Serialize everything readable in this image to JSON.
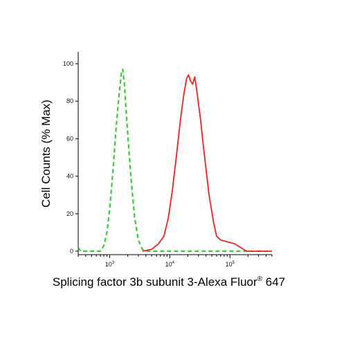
{
  "chart_data": {
    "type": "line",
    "xscale": "log",
    "xlim": [
      300,
      500000
    ],
    "ylim": [
      0,
      100
    ],
    "xticks": [
      {
        "value": 1000,
        "base": "10",
        "exp": "3"
      },
      {
        "value": 10000,
        "base": "10",
        "exp": "4"
      },
      {
        "value": 100000,
        "base": "10",
        "exp": "5"
      }
    ],
    "yticks": [
      {
        "value": 0,
        "label": "0"
      },
      {
        "value": 20,
        "label": "20"
      },
      {
        "value": 40,
        "label": "40"
      },
      {
        "value": 60,
        "label": "60"
      },
      {
        "value": 80,
        "label": "80"
      },
      {
        "value": 100,
        "label": "100"
      }
    ],
    "xlabel_main": "Splicing factor 3b subunit 3-Alexa Fluor",
    "xlabel_mark": "®",
    "xlabel_tail": " 647",
    "ylabel": "Cell Counts (% Max)",
    "grid": false,
    "series": [
      {
        "style": "dashed",
        "color": "#33cc33",
        "points": [
          [
            300,
            2
          ],
          [
            330,
            0
          ],
          [
            700,
            0
          ],
          [
            800,
            3
          ],
          [
            900,
            10
          ],
          [
            1000,
            22
          ],
          [
            1150,
            45
          ],
          [
            1300,
            68
          ],
          [
            1450,
            85
          ],
          [
            1580,
            96
          ],
          [
            1650,
            97
          ],
          [
            1750,
            90
          ],
          [
            1950,
            68
          ],
          [
            2250,
            40
          ],
          [
            2600,
            18
          ],
          [
            3000,
            6
          ],
          [
            3500,
            1
          ],
          [
            4000,
            0
          ],
          [
            500000,
            0
          ]
        ]
      },
      {
        "style": "solid",
        "color": "#ee2222",
        "points": [
          [
            3500,
            0
          ],
          [
            5000,
            1
          ],
          [
            6500,
            4
          ],
          [
            8000,
            8
          ],
          [
            9500,
            18
          ],
          [
            11000,
            32
          ],
          [
            13000,
            52
          ],
          [
            15000,
            70
          ],
          [
            17000,
            83
          ],
          [
            19000,
            92
          ],
          [
            20500,
            94
          ],
          [
            22000,
            91
          ],
          [
            24000,
            89
          ],
          [
            26000,
            93
          ],
          [
            28000,
            86
          ],
          [
            32000,
            72
          ],
          [
            38000,
            50
          ],
          [
            45000,
            30
          ],
          [
            53000,
            16
          ],
          [
            60000,
            8
          ],
          [
            70000,
            6
          ],
          [
            90000,
            5
          ],
          [
            120000,
            4
          ],
          [
            150000,
            2
          ],
          [
            190000,
            0
          ],
          [
            500000,
            0
          ]
        ]
      }
    ]
  }
}
